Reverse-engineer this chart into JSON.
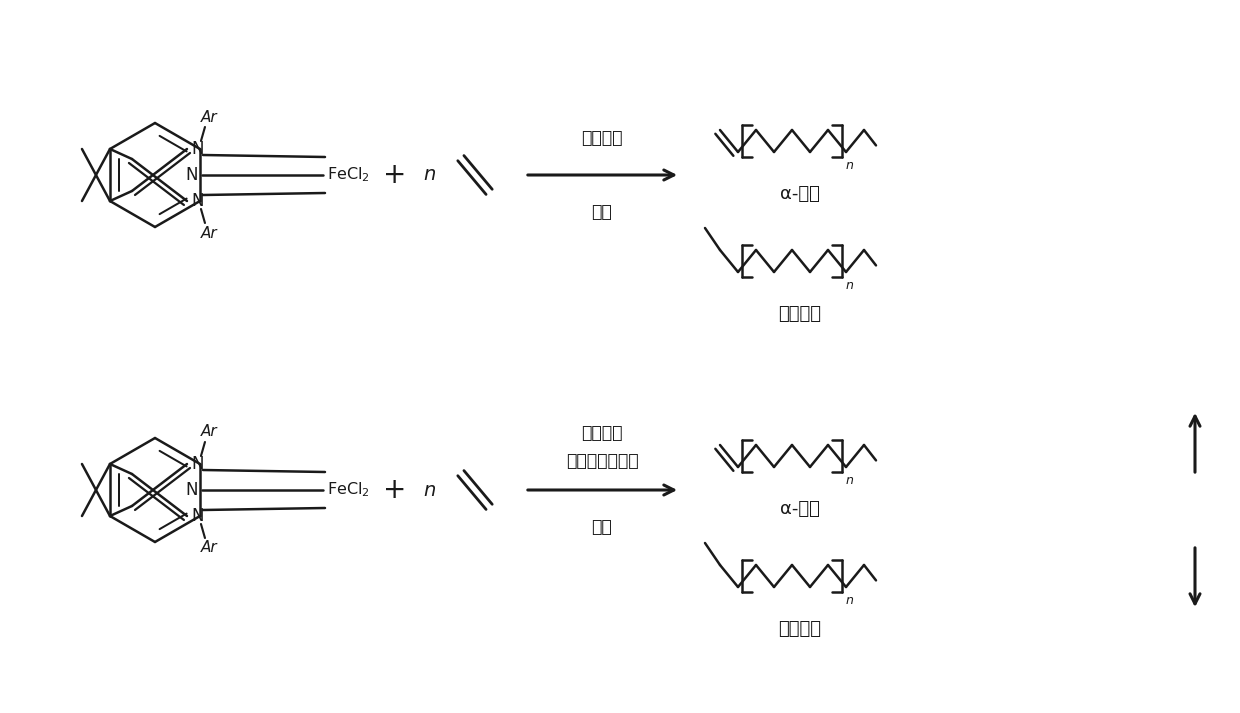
{
  "background_color": "#ffffff",
  "line_color": "#1a1a1a",
  "fig_width": 12.4,
  "fig_height": 7.13,
  "top_reaction": {
    "arrow_label_above": "助催化剂",
    "arrow_label_below": "溶剂",
    "product1_label": "α-烯烃",
    "product2_label": "聚乙烯蜡",
    "plus_label": "+",
    "n_label": "n",
    "Ar_top": "Ar",
    "Ar_bot": "Ar"
  },
  "bottom_reaction": {
    "arrow_label_line1": "助催化剂",
    "arrow_label_line2": "聚乙烯蜡抑制剂",
    "arrow_label_line3": "溶剂",
    "product1_label": "α-烯烃",
    "product2_label": "聚乙烯蜡",
    "plus_label": "+",
    "n_label": "n",
    "Ar_top": "Ar",
    "Ar_bot": "Ar"
  }
}
